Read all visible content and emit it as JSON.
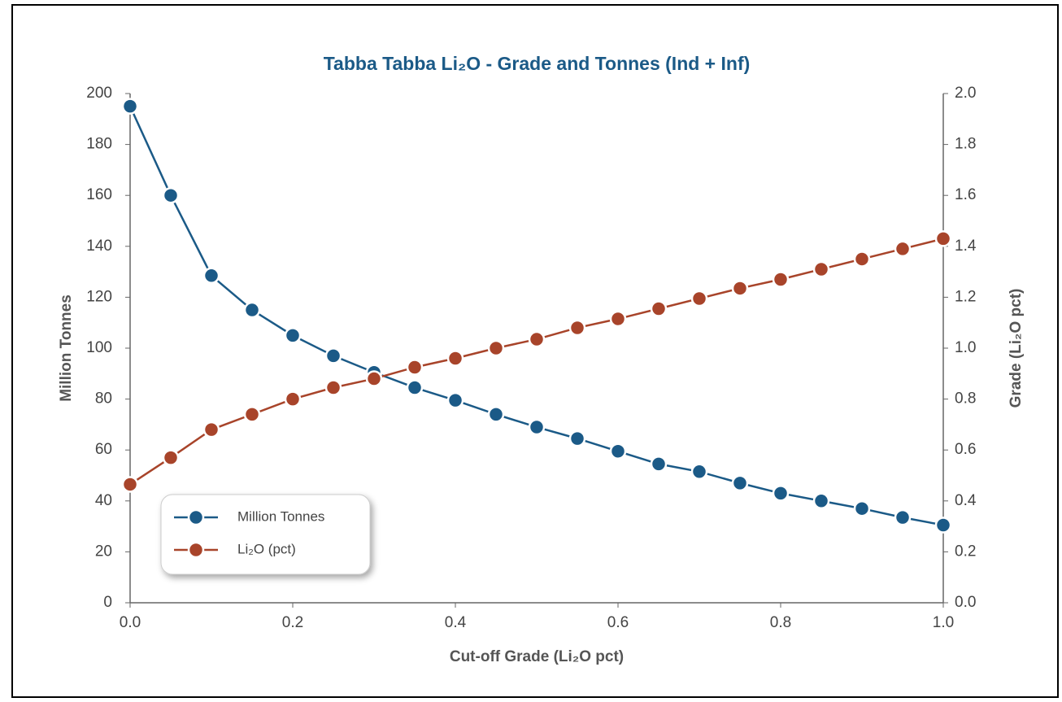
{
  "chart_data": {
    "type": "line",
    "title": "Tabba Tabba Li₂O - Grade and Tonnes (Ind + Inf)",
    "xlabel": "Cut-off Grade (Li₂O pct)",
    "ylabel": "Million Tonnes",
    "y2label": "Grade (Li₂O pct)",
    "x": [
      0,
      0.05,
      0.1,
      0.15,
      0.2,
      0.25,
      0.3,
      0.35,
      0.4,
      0.45,
      0.5,
      0.55,
      0.6,
      0.65,
      0.7,
      0.75,
      0.8,
      0.85,
      0.9,
      0.95,
      1
    ],
    "series": [
      {
        "name": "Million Tonnes",
        "color": "#1b5a87",
        "axis": "y",
        "values": [
          195,
          160,
          128.5,
          115,
          105,
          97,
          90.5,
          84.5,
          79.5,
          74,
          69,
          64.5,
          59.5,
          54.5,
          51.5,
          47,
          43,
          40,
          37,
          33.5,
          30.5
        ]
      },
      {
        "name": "Li₂O (pct)",
        "color": "#a8442a",
        "axis": "y2",
        "values": [
          0.465,
          0.57,
          0.68,
          0.74,
          0.8,
          0.845,
          0.88,
          0.925,
          0.96,
          1.0,
          1.035,
          1.08,
          1.115,
          1.155,
          1.195,
          1.235,
          1.27,
          1.31,
          1.35,
          1.39,
          1.43
        ]
      }
    ],
    "xlim": [
      0,
      1
    ],
    "xticks": [
      {
        "value": 0,
        "label": "0.0"
      },
      0.2,
      0.4,
      0.6,
      0.8,
      {
        "value": 1,
        "label": "1.0"
      }
    ],
    "ylim": [
      0,
      200
    ],
    "yticks": [
      0,
      20,
      40,
      60,
      80,
      100,
      120,
      140,
      160,
      180,
      200
    ],
    "y2lim": [
      0,
      2
    ],
    "y2ticks": [
      {
        "value": 0,
        "label": "0.0"
      },
      0.2,
      0.4,
      0.6,
      0.8,
      {
        "value": 1,
        "label": "1.0"
      },
      1.2,
      1.4,
      1.6,
      1.8,
      {
        "value": 2,
        "label": "2.0"
      }
    ],
    "legend": "lower left"
  }
}
